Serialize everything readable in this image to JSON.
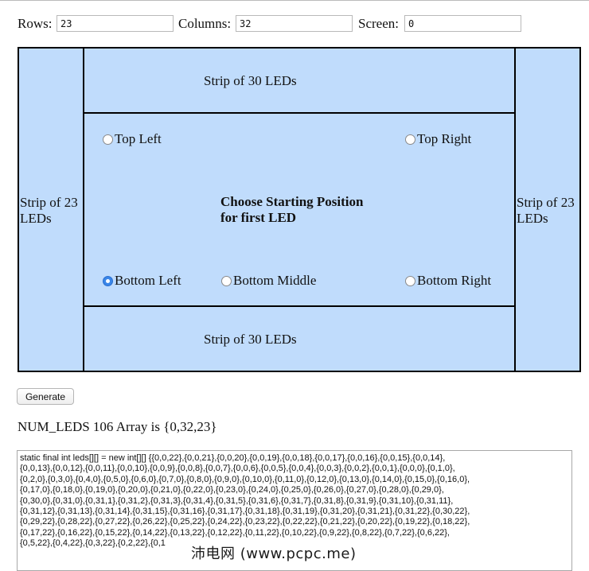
{
  "controls": {
    "rows_label": "Rows:",
    "rows_value": "23",
    "columns_label": "Columns:",
    "columns_value": "32",
    "screen_label": "Screen:",
    "screen_value": "0"
  },
  "board": {
    "top_strip": "Strip of 30 LEDs",
    "bottom_strip": "Strip of 30 LEDs",
    "left_strip": "Strip of 23 LEDs",
    "right_strip": "Strip of 23 LEDs",
    "center_title_line1": "Choose Starting Position",
    "center_title_line2": "for first LED",
    "positions": {
      "top_left": "Top Left",
      "top_right": "Top Right",
      "bottom_left": "Bottom Left",
      "bottom_middle": "Bottom Middle",
      "bottom_right": "Bottom Right"
    },
    "selected": "bottom_left"
  },
  "generate_label": "Generate",
  "result_text": "NUM_LEDS 106 Array is {0,32,23}",
  "output_text": "static final int leds[][] = new int[][] {{0,0,22},{0,0,21},{0,0,20},{0,0,19},{0,0,18},{0,0,17},{0,0,16},{0,0,15},{0,0,14},\n{0,0,13},{0,0,12},{0,0,11},{0,0,10},{0,0,9},{0,0,8},{0,0,7},{0,0,6},{0,0,5},{0,0,4},{0,0,3},{0,0,2},{0,0,1},{0,0,0},{0,1,0},\n{0,2,0},{0,3,0},{0,4,0},{0,5,0},{0,6,0},{0,7,0},{0,8,0},{0,9,0},{0,10,0},{0,11,0},{0,12,0},{0,13,0},{0,14,0},{0,15,0},{0,16,0},\n{0,17,0},{0,18,0},{0,19,0},{0,20,0},{0,21,0},{0,22,0},{0,23,0},{0,24,0},{0,25,0},{0,26,0},{0,27,0},{0,28,0},{0,29,0},\n{0,30,0},{0,31,0},{0,31,1},{0,31,2},{0,31,3},{0,31,4},{0,31,5},{0,31,6},{0,31,7},{0,31,8},{0,31,9},{0,31,10},{0,31,11},\n{0,31,12},{0,31,13},{0,31,14},{0,31,15},{0,31,16},{0,31,17},{0,31,18},{0,31,19},{0,31,20},{0,31,21},{0,31,22},{0,30,22},\n{0,29,22},{0,28,22},{0,27,22},{0,26,22},{0,25,22},{0,24,22},{0,23,22},{0,22,22},{0,21,22},{0,20,22},{0,19,22},{0,18,22},\n{0,17,22},{0,16,22},{0,15,22},{0,14,22},{0,13,22},{0,12,22},{0,11,22},{0,10,22},{0,9,22},{0,8,22},{0,7,22},{0,6,22},\n{0,5,22},{0,4,22},{0,3,22},{0,2,22},{0,1",
  "watermark": "沛电网 (www.pcpc.me)",
  "colors": {
    "board_fill": "#c0dcfc",
    "radio_checked": "#3a86e8"
  }
}
